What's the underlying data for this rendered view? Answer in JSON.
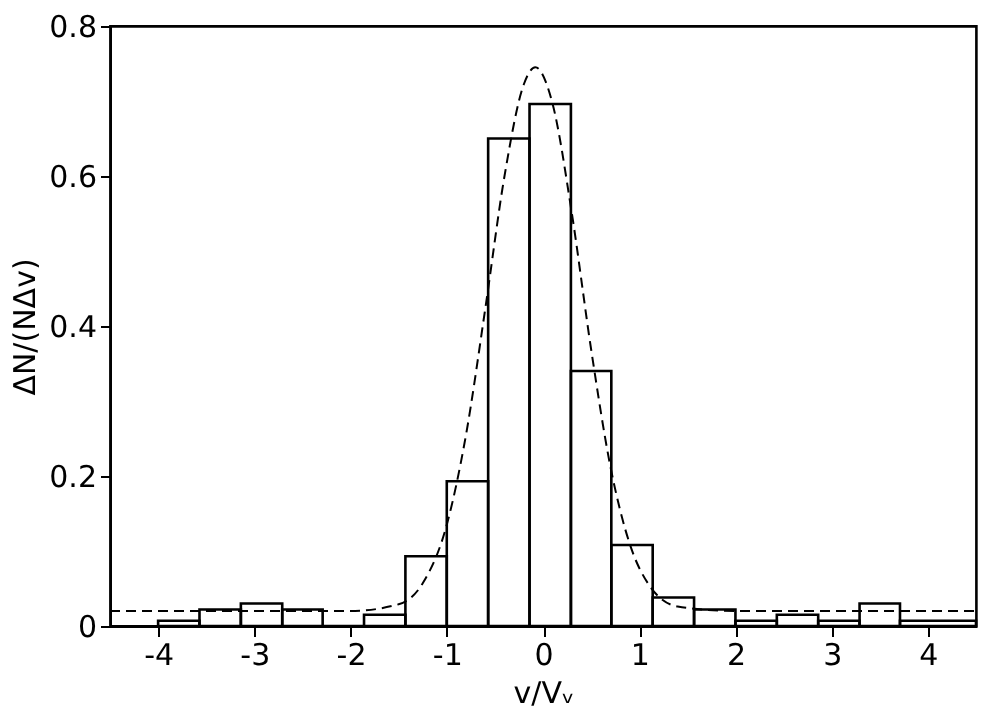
{
  "chart_data": {
    "type": "histogram",
    "xlabel": "v/Vᵥ",
    "ylabel": "ΔN/(NΔv)",
    "bins": [
      -4,
      -3.57,
      -3.14,
      -2.71,
      -2.29,
      -1.86,
      -1.43,
      -1,
      -0.57,
      -0.14,
      0.29,
      0.71,
      1.14,
      1.57,
      2,
      2.43,
      2.86,
      3.29,
      3.71,
      4.5
    ],
    "values": [
      0.007,
      0.022,
      0.03,
      0.022,
      0,
      0.015,
      0.093,
      0.193,
      0.65,
      0.696,
      0.34,
      0.108,
      0.038,
      0.022,
      0.007,
      0.015,
      0.007,
      0.03,
      0.007
    ],
    "color": "#000000",
    "series": [
      {
        "type": "line",
        "line_style": "dashed",
        "color": "#000000",
        "x": [
          -4.5,
          -3,
          -2,
          -1.5,
          -1.25,
          -1,
          -0.8,
          -0.6,
          -0.4,
          -0.2,
          -0.08,
          0.1,
          0.3,
          0.5,
          0.7,
          0.9,
          1.1,
          1.4,
          2,
          3,
          4.5
        ],
        "values": [
          0.02,
          0.02,
          0.02,
          0.029,
          0.057,
          0.135,
          0.255,
          0.423,
          0.6,
          0.722,
          0.745,
          0.696,
          0.55,
          0.369,
          0.213,
          0.11,
          0.055,
          0.026,
          0.02,
          0.02,
          0.02
        ]
      }
    ],
    "xlim": [
      -4.5,
      4.5
    ],
    "xticks": [
      -4,
      -3,
      -2,
      -1,
      0,
      1,
      2,
      3,
      4
    ],
    "ylim": [
      0,
      0.8
    ],
    "yticks": [
      0,
      0.2,
      0.4,
      0.6,
      0.8
    ],
    "grid": false
  }
}
